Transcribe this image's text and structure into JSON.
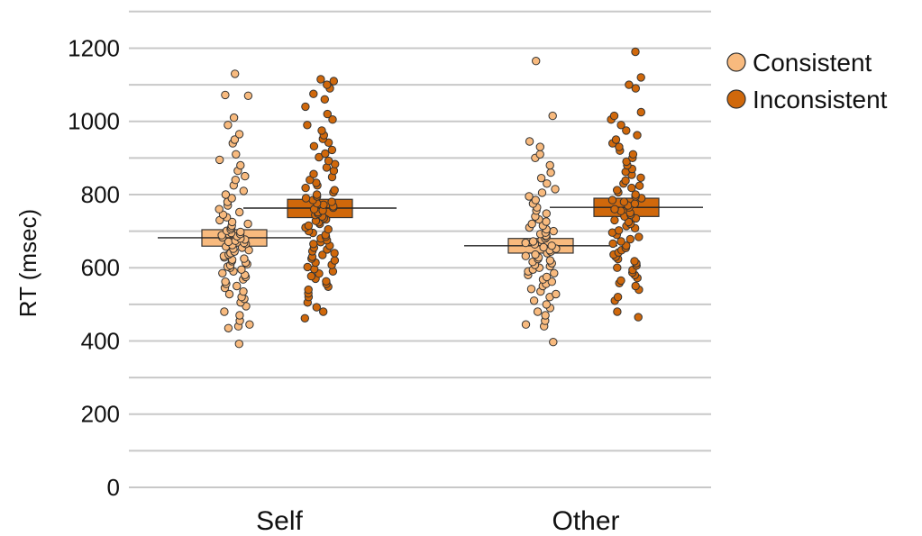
{
  "chart_data": {
    "type": "scatter",
    "subtype": "jitter-strip-with-crossbar",
    "ylabel": "RT (msec)",
    "xlabel": "",
    "ylim": [
      0,
      1300
    ],
    "y_ticks": [
      0,
      200,
      400,
      600,
      800,
      1000,
      1200
    ],
    "grid": true,
    "grid_step": 100,
    "categories": [
      "Self",
      "Other"
    ],
    "legend_position": "right",
    "series": [
      {
        "name": "Consistent",
        "color": "#F8BA7E",
        "summary": [
          {
            "category": "Self",
            "mean": 682,
            "lower": 659,
            "upper": 704
          },
          {
            "category": "Other",
            "mean": 660,
            "lower": 640,
            "upper": 680
          }
        ],
        "points": {
          "Self": [
            392,
            435,
            440,
            445,
            455,
            470,
            480,
            495,
            505,
            515,
            520,
            528,
            535,
            545,
            550,
            556,
            562,
            568,
            575,
            580,
            585,
            590,
            595,
            600,
            603,
            607,
            610,
            614,
            618,
            622,
            625,
            628,
            632,
            636,
            640,
            644,
            648,
            652,
            655,
            658,
            662,
            665,
            668,
            671,
            674,
            677,
            680,
            683,
            686,
            689,
            692,
            695,
            698,
            701,
            705,
            710,
            715,
            720,
            725,
            730,
            738,
            745,
            752,
            760,
            770,
            780,
            790,
            800,
            810,
            825,
            840,
            850,
            865,
            880,
            895,
            910,
            940,
            950,
            965,
            990,
            1010,
            1070,
            1072,
            1130
          ],
          "Other": [
            397,
            440,
            445,
            455,
            470,
            480,
            490,
            500,
            510,
            520,
            528,
            535,
            542,
            550,
            556,
            562,
            568,
            575,
            580,
            585,
            590,
            595,
            600,
            604,
            608,
            612,
            616,
            620,
            624,
            628,
            632,
            636,
            640,
            644,
            648,
            652,
            656,
            660,
            664,
            668,
            672,
            676,
            680,
            684,
            688,
            692,
            696,
            700,
            705,
            710,
            715,
            720,
            726,
            732,
            740,
            748,
            756,
            765,
            775,
            785,
            795,
            805,
            815,
            830,
            845,
            860,
            880,
            900,
            910,
            930,
            945,
            1015,
            1165
          ]
        }
      },
      {
        "name": "Inconsistent",
        "color": "#D0680B",
        "summary": [
          {
            "category": "Self",
            "mean": 763,
            "lower": 737,
            "upper": 787
          },
          {
            "category": "Other",
            "mean": 765,
            "lower": 740,
            "upper": 790
          }
        ],
        "points": {
          "Self": [
            462,
            480,
            492,
            505,
            520,
            530,
            540,
            548,
            556,
            563,
            570,
            577,
            584,
            590,
            596,
            602,
            608,
            614,
            620,
            625,
            630,
            635,
            640,
            645,
            650,
            655,
            660,
            665,
            670,
            675,
            680,
            685,
            690,
            695,
            700,
            705,
            710,
            715,
            720,
            724,
            728,
            732,
            736,
            740,
            744,
            748,
            752,
            756,
            760,
            764,
            768,
            772,
            776,
            780,
            785,
            790,
            795,
            800,
            806,
            812,
            818,
            825,
            832,
            840,
            848,
            856,
            865,
            874,
            883,
            892,
            902,
            912,
            922,
            932,
            942,
            952,
            962,
            975,
            990,
            1005,
            1020,
            1040,
            1060,
            1075,
            1090,
            1100,
            1110,
            1115
          ],
          "Other": [
            465,
            480,
            510,
            520,
            540,
            550,
            558,
            565,
            572,
            580,
            587,
            594,
            600,
            606,
            612,
            618,
            624,
            630,
            636,
            642,
            648,
            654,
            660,
            666,
            672,
            678,
            684,
            690,
            696,
            702,
            708,
            714,
            720,
            725,
            730,
            735,
            740,
            745,
            750,
            755,
            760,
            765,
            770,
            775,
            780,
            785,
            790,
            795,
            800,
            806,
            812,
            818,
            824,
            830,
            838,
            846,
            854,
            862,
            870,
            880,
            890,
            900,
            910,
            920,
            930,
            940,
            950,
            962,
            975,
            990,
            1005,
            1015,
            1025,
            1090,
            1100,
            1120,
            1190
          ]
        }
      }
    ]
  }
}
